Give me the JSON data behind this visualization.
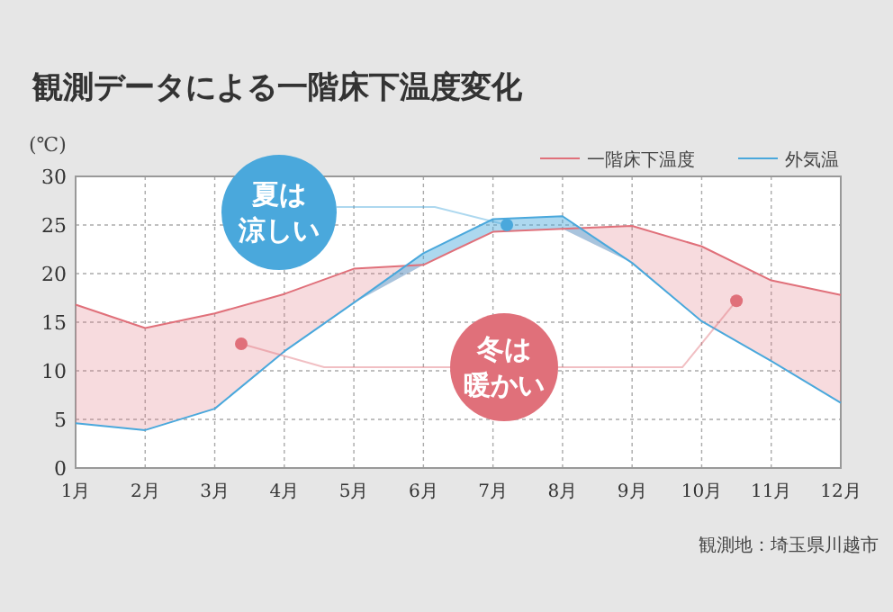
{
  "chart_data": {
    "type": "line",
    "title": "観測データによる一階床下温度変化",
    "ylabel": "(℃)",
    "x": [
      1,
      2,
      3,
      4,
      5,
      6,
      7,
      8,
      9,
      10,
      11,
      12
    ],
    "xlim": [
      1,
      12
    ],
    "xticks": [
      {
        "value": 1,
        "label": "1月"
      },
      {
        "value": 2,
        "label": "2月"
      },
      {
        "value": 3,
        "label": "3月"
      },
      {
        "value": 4,
        "label": "4月"
      },
      {
        "value": 5,
        "label": "5月"
      },
      {
        "value": 6,
        "label": "6月"
      },
      {
        "value": 7,
        "label": "7月"
      },
      {
        "value": 8,
        "label": "8月"
      },
      {
        "value": 9,
        "label": "9月"
      },
      {
        "value": 10,
        "label": "10月"
      },
      {
        "value": 11,
        "label": "11月"
      },
      {
        "value": 12,
        "label": "12月"
      }
    ],
    "ylim": [
      0,
      30
    ],
    "yticks": [
      0,
      5,
      10,
      15,
      20,
      25,
      30
    ],
    "series": [
      {
        "name": "一階床下温度",
        "color": "#e0707a",
        "values": [
          16.8,
          14.4,
          15.9,
          17.9,
          20.5,
          20.9,
          24.3,
          24.6,
          24.9,
          22.8,
          19.3,
          17.8
        ],
        "lower": [
          4.6,
          3.9,
          6.1,
          12,
          17,
          20.9,
          24.3,
          24.6,
          21.1,
          15.1,
          11,
          6.7
        ],
        "upper": [
          16.8,
          14.4,
          15.9,
          17.9,
          20.5,
          20.9,
          24.3,
          24.6,
          24.9,
          22.8,
          19.3,
          17.8
        ]
      },
      {
        "name": "外気温",
        "color": "#4aa8dc",
        "values": [
          4.6,
          3.9,
          6.1,
          12,
          17,
          22.1,
          25.6,
          25.9,
          21.1,
          15.1,
          11,
          6.7
        ],
        "lower": [
          4.6,
          3.9,
          6.1,
          12,
          17,
          20.9,
          24.3,
          24.6,
          21.1,
          15.1,
          11,
          6.7
        ],
        "upper": [
          4.6,
          3.9,
          6.1,
          12,
          17,
          22.1,
          25.6,
          25.9,
          21.1,
          15.1,
          11,
          6.7
        ]
      }
    ],
    "annotations": [
      {
        "text": "夏は涼しい",
        "x": 7.2,
        "y": 25
      },
      {
        "text": "冬は暖かい",
        "x": 10.5,
        "y": 17.2
      },
      "観測地：埼玉県川越市"
    ],
    "grid": true,
    "legend": "top right",
    "marker": "none",
    "line_style": "solid"
  }
}
